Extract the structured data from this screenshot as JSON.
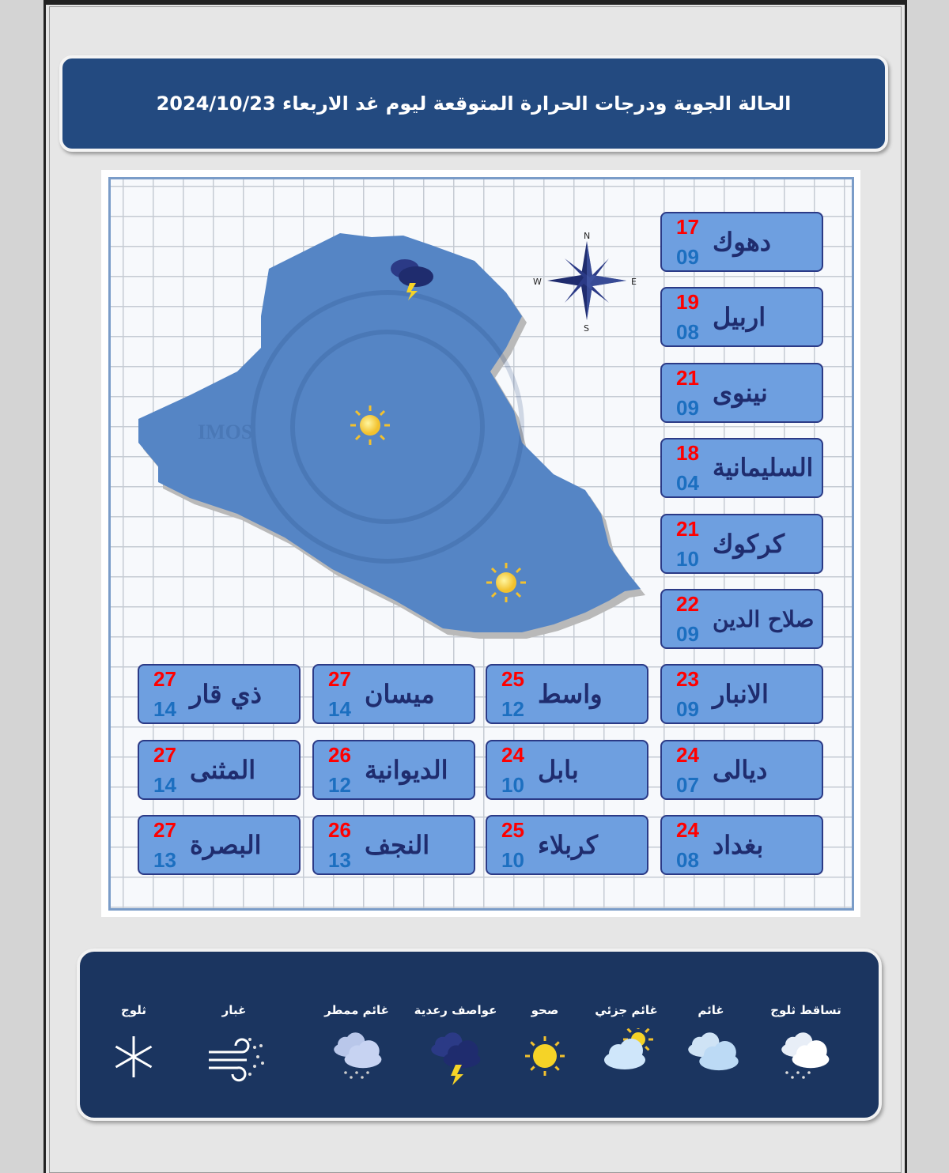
{
  "title": "الحالة الجوية ودرجات الحرارة المتوقعة ليوم غد الاربعاء  2024/10/23",
  "map": {
    "watermark": "WEATHER FORECASTING IMOS قسم التنبؤ",
    "compass": {
      "n": "N",
      "s": "S",
      "e": "E",
      "w": "W"
    },
    "icons": [
      "thunderstorm-icon",
      "sunny-icon",
      "sunny-icon"
    ],
    "land_color": "#5585c5"
  },
  "colors": {
    "max_temp": "#ff0000",
    "min_temp": "#1c6fc0",
    "card": "#6e9fe0",
    "banner": "#234a80"
  },
  "cities": [
    {
      "name": "دهوك",
      "max": "17",
      "min": "09"
    },
    {
      "name": "اربيل",
      "max": "19",
      "min": "08"
    },
    {
      "name": "نينوى",
      "max": "21",
      "min": "09"
    },
    {
      "name": "السليمانية",
      "max": "18",
      "min": "04"
    },
    {
      "name": "كركوك",
      "max": "21",
      "min": "10"
    },
    {
      "name": "صلاح الدين",
      "max": "22",
      "min": "09"
    },
    {
      "name": "الانبار",
      "max": "23",
      "min": "09"
    },
    {
      "name": "واسط",
      "max": "25",
      "min": "12"
    },
    {
      "name": "ميسان",
      "max": "27",
      "min": "14"
    },
    {
      "name": "ذي قار",
      "max": "27",
      "min": "14"
    },
    {
      "name": "ديالى",
      "max": "24",
      "min": "07"
    },
    {
      "name": "بابل",
      "max": "24",
      "min": "10"
    },
    {
      "name": "الديوانية",
      "max": "26",
      "min": "12"
    },
    {
      "name": "المثنى",
      "max": "27",
      "min": "14"
    },
    {
      "name": "بغداد",
      "max": "24",
      "min": "08"
    },
    {
      "name": "كربلاء",
      "max": "25",
      "min": "10"
    },
    {
      "name": "النجف",
      "max": "26",
      "min": "13"
    },
    {
      "name": "البصرة",
      "max": "27",
      "min": "13"
    }
  ],
  "legend": [
    {
      "label": "تساقط ثلوج",
      "icon": "snowfall-icon"
    },
    {
      "label": "غائم",
      "icon": "cloudy-icon"
    },
    {
      "label": "غائم جزئي",
      "icon": "partly-cloudy-icon"
    },
    {
      "label": "صحو",
      "icon": "sunny-icon"
    },
    {
      "label": "عواصف رعدية",
      "icon": "thunderstorm-icon"
    },
    {
      "label": "غائم ممطر",
      "icon": "rainy-icon"
    },
    {
      "label": "غبار",
      "icon": "dust-icon"
    },
    {
      "label": "ثلوج",
      "icon": "snowflake-icon"
    }
  ]
}
